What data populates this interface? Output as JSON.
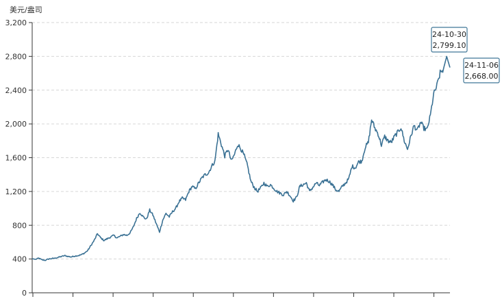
{
  "chart_data": {
    "type": "line",
    "y_unit_label": "美元/盎司",
    "ylim": [
      0,
      3200
    ],
    "y_ticks": [
      0,
      400,
      800,
      1200,
      1600,
      2000,
      2400,
      2800,
      3200
    ],
    "y_tick_labels": [
      "0",
      "400",
      "800",
      "1,200",
      "1,600",
      "2,000",
      "2,400",
      "2,800",
      "3,200"
    ],
    "grid": true,
    "line_color": "#3a7194",
    "series": [
      {
        "values": [
          405,
          395,
          410,
          390,
          385,
          400,
          405,
          410,
          420,
          430,
          440,
          430,
          425,
          435,
          440,
          450,
          470,
          500,
          560,
          620,
          700,
          650,
          620,
          640,
          660,
          680,
          650,
          670,
          690,
          680,
          710,
          780,
          880,
          950,
          900,
          870,
          980,
          920,
          820,
          720,
          860,
          940,
          900,
          960,
          1000,
          1080,
          1120,
          1100,
          1200,
          1260,
          1230,
          1300,
          1360,
          1400,
          1420,
          1500,
          1560,
          1880,
          1750,
          1620,
          1700,
          1560,
          1640,
          1760,
          1700,
          1620,
          1500,
          1320,
          1250,
          1200,
          1240,
          1300,
          1260,
          1280,
          1240,
          1200,
          1180,
          1160,
          1200,
          1150,
          1090,
          1130,
          1260,
          1280,
          1300,
          1200,
          1250,
          1300,
          1270,
          1310,
          1340,
          1320,
          1280,
          1220,
          1200,
          1260,
          1300,
          1350,
          1500,
          1480,
          1550,
          1560,
          1720,
          1780,
          2050,
          1950,
          1880,
          1750,
          1850,
          1800,
          1780,
          1850,
          1900,
          1960,
          1800,
          1700,
          1850,
          1980,
          1920,
          2020,
          1950,
          1930,
          2100,
          2350,
          2450,
          2600,
          2650,
          2799.1,
          2668
        ]
      }
    ],
    "tooltips": [
      {
        "date": "24-10-30",
        "value": "2,799.10"
      },
      {
        "date": "24-11-06",
        "value": "2,668.00"
      }
    ]
  }
}
